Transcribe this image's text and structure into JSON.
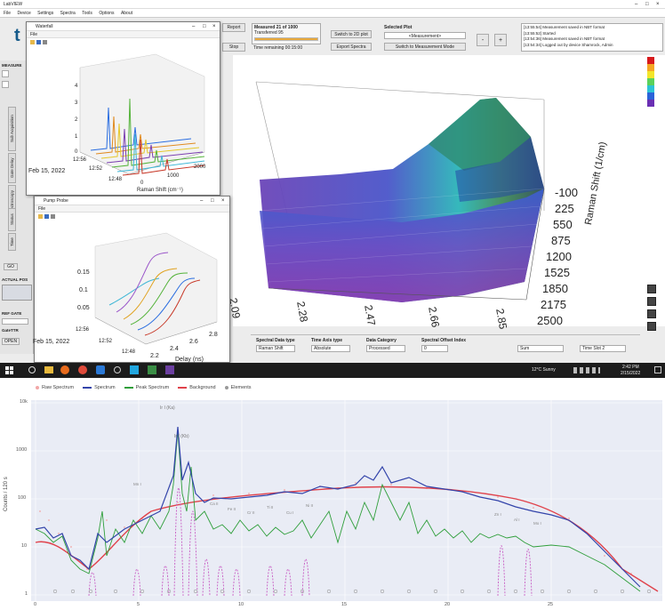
{
  "app": {
    "title": "LabVIEW",
    "menu": [
      "File",
      "Device",
      "Settings",
      "Spectra",
      "Tools",
      "Options",
      "About"
    ],
    "toolbar": {
      "report_label": "Report",
      "stop_label": "Stop",
      "measured": "Measured 21 of 1000",
      "status": "Transferred 95",
      "time_remaining": "Time remaining 00:15:00",
      "switch_plot_label": "Switch to 2D plot",
      "export_label": "Export Spectra",
      "selected_plot_label": "Selected Plot",
      "selected_plot_value": "<Measurement>",
      "switch_mode_label": "Switch to Measurement Mode",
      "minus_label": "-",
      "plus_label": "+"
    },
    "log_lines": [
      "[13:55:54] Measurement saved in NBT format",
      "[13:55:52] Started",
      "[13:54:36] Measurement saved in NBT format",
      "[13:54:34] Logged out by device Shamrock, Admin"
    ],
    "side_tabs": [
      "Sub Acquisition",
      "Gate Delay",
      "Multispectroscopy",
      "Status",
      "Time"
    ],
    "left_labels": {
      "measure": "MEASURE",
      "actual_pos": "ACTUAL POS",
      "ref_gate": "REF GATE",
      "gate_ttr": "GateTTR",
      "open": "OPEN",
      "go": "GO"
    },
    "bottom_fields": [
      {
        "label": "Spectral Data type",
        "value": "Raman Shift"
      },
      {
        "label": "Time Axis type",
        "value": "Absolute"
      },
      {
        "label": "Data Category",
        "value": "Processed"
      },
      {
        "label": "Spectral Offset Index",
        "value": "0"
      }
    ],
    "bottom_extra": [
      "Sum",
      "Time Slot 2"
    ]
  },
  "waterfall_window": {
    "title": "Waterfall",
    "menu": "File",
    "date_label": "Feb 15, 2022",
    "time_ticks": [
      "12:56",
      "12:52",
      "12:48"
    ],
    "z_ticks": [
      "4",
      "3",
      "2",
      "1",
      "0"
    ],
    "x_ticks": [
      "0",
      "1000",
      "2000"
    ],
    "x_label": "Raman Shift (cm⁻¹)"
  },
  "pump_window": {
    "title": "Pump Probe",
    "menu": "File",
    "date_label": "Feb 15, 2022",
    "time_ticks": [
      "12:56",
      "12:52",
      "12:48"
    ],
    "y_ticks": [
      "0.15",
      "0.1",
      "0.05"
    ],
    "x_ticks": [
      "2.2",
      "2.4",
      "2.6",
      "2.8"
    ],
    "x_label": "Delay (ns)"
  },
  "surface_plot": {
    "raman_ticks": [
      "-100",
      "225",
      "550",
      "875",
      "1200",
      "1525",
      "1850",
      "2175",
      "2500"
    ],
    "raman_label": "Raman Shift (1/cm)",
    "delay_ticks": [
      "2.09",
      "2.28",
      "2.47",
      "2.66",
      "2.85"
    ],
    "colorbar_colors": [
      "#d7191c",
      "#f5a623",
      "#f3e52a",
      "#5bd15b",
      "#2cc3d6",
      "#2b63d9",
      "#6a2fb3"
    ]
  },
  "taskbar": {
    "weather": "12°C Sunny",
    "time": "2:42 PM",
    "date": "2/15/2022"
  },
  "spectrum": {
    "legend": [
      {
        "name": "Raw Spectrum",
        "color": "#f2a7a7"
      },
      {
        "name": "Spectrum",
        "color": "#3344aa"
      },
      {
        "name": "Peak Spectrum",
        "color": "#2e9e3a"
      },
      {
        "name": "Background",
        "color": "#e0424b"
      },
      {
        "name": "Elements",
        "color": "#999999"
      }
    ],
    "y_label": "Counts / 120 s",
    "y_ticks": [
      "10k",
      "1000",
      "100",
      "10",
      "1"
    ],
    "x_ticks": [
      "0",
      "5",
      "10",
      "15",
      "20",
      "25"
    ],
    "peak_labels": [
      "Ir I (Ka)",
      "Ir I (Kb)",
      "Mn I",
      "Ca II",
      "Fe II",
      "Cr II",
      "Ti II",
      "Cu I",
      "Ni II",
      "Zn I",
      "Al I",
      "Mo I"
    ]
  }
}
